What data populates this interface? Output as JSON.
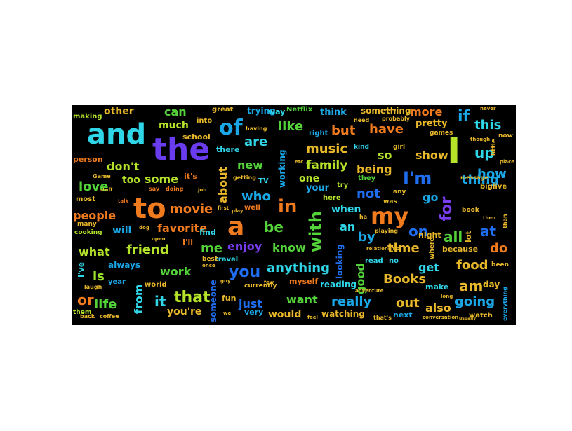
{
  "words": [
    {
      "text": "and",
      "color": "#2fd6e8",
      "size": 40
    },
    {
      "text": "the",
      "color": "#6a3cf0",
      "size": 44
    },
    {
      "text": "of",
      "color": "#1aa7e8",
      "size": 30
    },
    {
      "text": "to",
      "color": "#f07a1e",
      "size": 40
    },
    {
      "text": "a",
      "color": "#f07a1e",
      "size": 36
    },
    {
      "text": "I",
      "color": "#b5e32a",
      "size": 52
    },
    {
      "text": "my",
      "color": "#f07a1e",
      "size": 32
    },
    {
      "text": "I'm",
      "color": "#1f6df0",
      "size": 24
    },
    {
      "text": "in",
      "color": "#f07a1e",
      "size": 26
    },
    {
      "text": "with",
      "color": "#54d23a",
      "size": 24
    },
    {
      "text": "for",
      "color": "#7a3cf0",
      "size": 22
    },
    {
      "text": "you",
      "color": "#1f6df0",
      "size": 22
    },
    {
      "text": "is",
      "color": "#9be32a",
      "size": 18
    },
    {
      "text": "it",
      "color": "#2fd6e8",
      "size": 20
    },
    {
      "text": "that",
      "color": "#b5e32a",
      "size": 22
    },
    {
      "text": "be",
      "color": "#54d23a",
      "size": 20
    },
    {
      "text": "me",
      "color": "#54d23a",
      "size": 18
    },
    {
      "text": "at",
      "color": "#1f6df0",
      "size": 20
    },
    {
      "text": "on",
      "color": "#1f6df0",
      "size": 20
    },
    {
      "text": "all",
      "color": "#54d23a",
      "size": 20
    },
    {
      "text": "so",
      "color": "#b5e32a",
      "size": 16
    },
    {
      "text": "if",
      "color": "#1aa7e8",
      "size": 22
    },
    {
      "text": "up",
      "color": "#2fd6e8",
      "size": 20
    },
    {
      "text": "do",
      "color": "#f07a1e",
      "size": 18
    },
    {
      "text": "am",
      "color": "#e8b82a",
      "size": 20
    },
    {
      "text": "or",
      "color": "#f07a1e",
      "size": 20
    },
    {
      "text": "an",
      "color": "#2fd6e8",
      "size": 16
    },
    {
      "text": "by",
      "color": "#1aa7e8",
      "size": 18
    },
    {
      "text": "but",
      "color": "#f07a1e",
      "size": 18
    },
    {
      "text": "can",
      "color": "#54d23a",
      "size": 16
    },
    {
      "text": "are",
      "color": "#2fd6e8",
      "size": 18
    },
    {
      "text": "like",
      "color": "#54d23a",
      "size": 18
    },
    {
      "text": "have",
      "color": "#f07a1e",
      "size": 18
    },
    {
      "text": "this",
      "color": "#2fd6e8",
      "size": 18
    },
    {
      "text": "more",
      "color": "#f07a1e",
      "size": 16
    },
    {
      "text": "show",
      "color": "#e8b82a",
      "size": 16
    },
    {
      "text": "thing",
      "color": "#1aa7e8",
      "size": 18
    },
    {
      "text": "how",
      "color": "#1aa7e8",
      "size": 18
    },
    {
      "text": "music",
      "color": "#e8b82a",
      "size": 18
    },
    {
      "text": "family",
      "color": "#b5e32a",
      "size": 17
    },
    {
      "text": "being",
      "color": "#e8b82a",
      "size": 16
    },
    {
      "text": "not",
      "color": "#1f6df0",
      "size": 18
    },
    {
      "text": "go",
      "color": "#1aa7e8",
      "size": 16
    },
    {
      "text": "people",
      "color": "#f07a1e",
      "size": 16
    },
    {
      "text": "movie",
      "color": "#f07a1e",
      "size": 18
    },
    {
      "text": "favorite",
      "color": "#f07a1e",
      "size": 16
    },
    {
      "text": "love",
      "color": "#54d23a",
      "size": 18
    },
    {
      "text": "don't",
      "color": "#b5e32a",
      "size": 16
    },
    {
      "text": "some",
      "color": "#b5e32a",
      "size": 16
    },
    {
      "text": "who",
      "color": "#1aa7e8",
      "size": 18
    },
    {
      "text": "new",
      "color": "#54d23a",
      "size": 16
    },
    {
      "text": "about",
      "color": "#e8b82a",
      "size": 16
    },
    {
      "text": "friend",
      "color": "#b5e32a",
      "size": 18
    },
    {
      "text": "what",
      "color": "#b5e32a",
      "size": 16
    },
    {
      "text": "enjoy",
      "color": "#7a3cf0",
      "size": 16
    },
    {
      "text": "know",
      "color": "#54d23a",
      "size": 16
    },
    {
      "text": "time",
      "color": "#e8b82a",
      "size": 18
    },
    {
      "text": "work",
      "color": "#54d23a",
      "size": 16
    },
    {
      "text": "anything",
      "color": "#2fd6e8",
      "size": 18
    },
    {
      "text": "food",
      "color": "#e8b82a",
      "size": 18
    },
    {
      "text": "get",
      "color": "#2fd6e8",
      "size": 16
    },
    {
      "text": "Books",
      "color": "#e8b82a",
      "size": 18
    },
    {
      "text": "life",
      "color": "#54d23a",
      "size": 18
    },
    {
      "text": "from",
      "color": "#2fd6e8",
      "size": 16
    },
    {
      "text": "just",
      "color": "#1f6df0",
      "size": 16
    },
    {
      "text": "want",
      "color": "#54d23a",
      "size": 16
    },
    {
      "text": "really",
      "color": "#1aa7e8",
      "size": 18
    },
    {
      "text": "out",
      "color": "#e8b82a",
      "size": 18
    },
    {
      "text": "also",
      "color": "#e8b82a",
      "size": 16
    },
    {
      "text": "going",
      "color": "#1aa7e8",
      "size": 18
    },
    {
      "text": "good",
      "color": "#54d23a",
      "size": 16
    },
    {
      "text": "much",
      "color": "#b5e32a",
      "size": 14
    },
    {
      "text": "other",
      "color": "#e8b82a",
      "size": 14
    },
    {
      "text": "pretty",
      "color": "#e8b82a",
      "size": 13
    },
    {
      "text": "one",
      "color": "#b5e32a",
      "size": 14
    },
    {
      "text": "when",
      "color": "#2fd6e8",
      "size": 14
    },
    {
      "text": "too",
      "color": "#b5e32a",
      "size": 14
    },
    {
      "text": "will",
      "color": "#1aa7e8",
      "size": 14
    },
    {
      "text": "always",
      "color": "#1aa7e8",
      "size": 12
    },
    {
      "text": "would",
      "color": "#e8b82a",
      "size": 14
    },
    {
      "text": "you're",
      "color": "#e8b82a",
      "size": 14
    },
    {
      "text": "working",
      "color": "#1aa7e8",
      "size": 12
    },
    {
      "text": "looking",
      "color": "#1f6df0",
      "size": 12
    },
    {
      "text": "someone",
      "color": "#1f6df0",
      "size": 12
    },
    {
      "text": "watching",
      "color": "#e8b82a",
      "size": 12
    },
    {
      "text": "reading",
      "color": "#2fd6e8",
      "size": 12
    },
    {
      "text": "think",
      "color": "#1aa7e8",
      "size": 13
    },
    {
      "text": "something",
      "color": "#e8b82a",
      "size": 12
    },
    {
      "text": "your",
      "color": "#1aa7e8",
      "size": 13
    },
    {
      "text": "trying",
      "color": "#1aa7e8",
      "size": 12
    },
    {
      "text": "school",
      "color": "#e8b82a",
      "size": 11
    },
    {
      "text": "because",
      "color": "#e8b82a",
      "size": 11
    },
    {
      "text": "find",
      "color": "#2fd6e8",
      "size": 11
    },
    {
      "text": "there",
      "color": "#2fd6e8",
      "size": 11
    },
    {
      "text": "most",
      "color": "#e8b82a",
      "size": 10
    },
    {
      "text": "person",
      "color": "#f07a1e",
      "size": 11
    },
    {
      "text": "myself",
      "color": "#f07a1e",
      "size": 11
    },
    {
      "text": "make",
      "color": "#2fd6e8",
      "size": 11
    },
    {
      "text": "night",
      "color": "#e8b82a",
      "size": 11
    },
    {
      "text": "day",
      "color": "#e8b82a",
      "size": 12
    },
    {
      "text": "fun",
      "color": "#e8b82a",
      "size": 11
    },
    {
      "text": "way",
      "color": "#2fd6e8",
      "size": 11
    },
    {
      "text": "into",
      "color": "#e8b82a",
      "size": 10
    },
    {
      "text": "great",
      "color": "#e8b82a",
      "size": 10
    },
    {
      "text": "making",
      "color": "#b5e32a",
      "size": 10
    },
    {
      "text": "Netflix",
      "color": "#54d23a",
      "size": 10
    },
    {
      "text": "right",
      "color": "#1aa7e8",
      "size": 10
    },
    {
      "text": "TV",
      "color": "#2fd6e8",
      "size": 10
    },
    {
      "text": "travel",
      "color": "#2fd6e8",
      "size": 10
    },
    {
      "text": "world",
      "color": "#e8b82a",
      "size": 10
    },
    {
      "text": "year",
      "color": "#1aa7e8",
      "size": 10
    },
    {
      "text": "very",
      "color": "#1aa7e8",
      "size": 11
    },
    {
      "text": "next",
      "color": "#1aa7e8",
      "size": 11
    },
    {
      "text": "watch",
      "color": "#e8b82a",
      "size": 10
    },
    {
      "text": "big",
      "color": "#e8b82a",
      "size": 10
    },
    {
      "text": "live",
      "color": "#e8b82a",
      "size": 10
    },
    {
      "text": "it's",
      "color": "#f07a1e",
      "size": 11
    },
    {
      "text": "I'll",
      "color": "#f07a1e",
      "size": 11
    },
    {
      "text": "I've",
      "color": "#2fd6e8",
      "size": 11
    },
    {
      "text": "here",
      "color": "#b5e32a",
      "size": 10
    },
    {
      "text": "try",
      "color": "#b5e32a",
      "size": 10
    },
    {
      "text": "they",
      "color": "#54d23a",
      "size": 10
    },
    {
      "text": "well",
      "color": "#f07a1e",
      "size": 10
    },
    {
      "text": "games",
      "color": "#e8b82a",
      "size": 9
    },
    {
      "text": "girl",
      "color": "#e8b82a",
      "size": 9
    },
    {
      "text": "kind",
      "color": "#2fd6e8",
      "size": 9
    },
    {
      "text": "best",
      "color": "#e8b82a",
      "size": 9
    },
    {
      "text": "book",
      "color": "#e8b82a",
      "size": 9
    },
    {
      "text": "coffee",
      "color": "#e8b82a",
      "size": 8
    },
    {
      "text": "back",
      "color": "#e8b82a",
      "size": 8
    },
    {
      "text": "them",
      "color": "#b5e32a",
      "size": 9
    },
    {
      "text": "cooking",
      "color": "#b5e32a",
      "size": 9
    },
    {
      "text": "many",
      "color": "#e8b82a",
      "size": 9
    },
    {
      "text": "little",
      "color": "#e8b82a",
      "size": 9
    },
    {
      "text": "currently",
      "color": "#e8b82a",
      "size": 9
    },
    {
      "text": "message",
      "color": "#e8b82a",
      "size": 8
    },
    {
      "text": "probably",
      "color": "#e8b82a",
      "size": 8
    },
    {
      "text": "conversation",
      "color": "#e8b82a",
      "size": 7
    },
    {
      "text": "relationship",
      "color": "#e8b82a",
      "size": 7
    },
    {
      "text": "adventure",
      "color": "#e8b82a",
      "size": 7
    },
    {
      "text": "getting",
      "color": "#e8b82a",
      "size": 8
    },
    {
      "text": "having",
      "color": "#e8b82a",
      "size": 8
    },
    {
      "text": "need",
      "color": "#e8b82a",
      "size": 8
    },
    {
      "text": "then",
      "color": "#e8b82a",
      "size": 7
    },
    {
      "text": "never",
      "color": "#e8b82a",
      "size": 7
    },
    {
      "text": "laugh",
      "color": "#e8b82a",
      "size": 8
    },
    {
      "text": "say",
      "color": "#f07a1e",
      "size": 8
    },
    {
      "text": "doing",
      "color": "#f07a1e",
      "size": 8
    },
    {
      "text": "that's",
      "color": "#e8b82a",
      "size": 8
    },
    {
      "text": "read",
      "color": "#2fd6e8",
      "size": 10
    },
    {
      "text": "no",
      "color": "#2fd6e8",
      "size": 10
    },
    {
      "text": "where",
      "color": "#e8b82a",
      "size": 9
    },
    {
      "text": "lot",
      "color": "#e8b82a",
      "size": 11
    },
    {
      "text": "than",
      "color": "#e8b82a",
      "size": 8
    },
    {
      "text": "been",
      "color": "#e8b82a",
      "size": 9
    },
    {
      "text": "everything",
      "color": "#1aa7e8",
      "size": 8
    },
    {
      "text": "Game",
      "color": "#e8b82a",
      "size": 8
    },
    {
      "text": "stuff",
      "color": "#e8b82a",
      "size": 7
    },
    {
      "text": "dog",
      "color": "#e8b82a",
      "size": 7
    },
    {
      "text": "job",
      "color": "#e8b82a",
      "size": 7
    },
    {
      "text": "talk",
      "color": "#f07a1e",
      "size": 7
    },
    {
      "text": "open",
      "color": "#e8b82a",
      "size": 7
    },
    {
      "text": "once",
      "color": "#e8b82a",
      "size": 7
    },
    {
      "text": "guy",
      "color": "#e8b82a",
      "size": 7
    },
    {
      "text": "we",
      "color": "#e8b82a",
      "size": 7
    },
    {
      "text": "feel",
      "color": "#e8b82a",
      "size": 7
    },
    {
      "text": "few",
      "color": "#e8b82a",
      "size": 7
    },
    {
      "text": "even",
      "color": "#e8b82a",
      "size": 7
    },
    {
      "text": "any",
      "color": "#e8b82a",
      "size": 9
    },
    {
      "text": "was",
      "color": "#e8b82a",
      "size": 9
    },
    {
      "text": "playing",
      "color": "#e8b82a",
      "size": 8
    },
    {
      "text": "long",
      "color": "#e8b82a",
      "size": 7
    },
    {
      "text": "usually",
      "color": "#e8b82a",
      "size": 6
    },
    {
      "text": "though",
      "color": "#e8b82a",
      "size": 7
    },
    {
      "text": "place",
      "color": "#e8b82a",
      "size": 7
    },
    {
      "text": "now",
      "color": "#e8b82a",
      "size": 9
    },
    {
      "text": "first",
      "color": "#e8b82a",
      "size": 7
    },
    {
      "text": "play",
      "color": "#e8b82a",
      "size": 7
    },
    {
      "text": "etc",
      "color": "#e8b82a",
      "size": 7
    },
    {
      "text": "ha",
      "color": "#e8b82a",
      "size": 8
    }
  ]
}
